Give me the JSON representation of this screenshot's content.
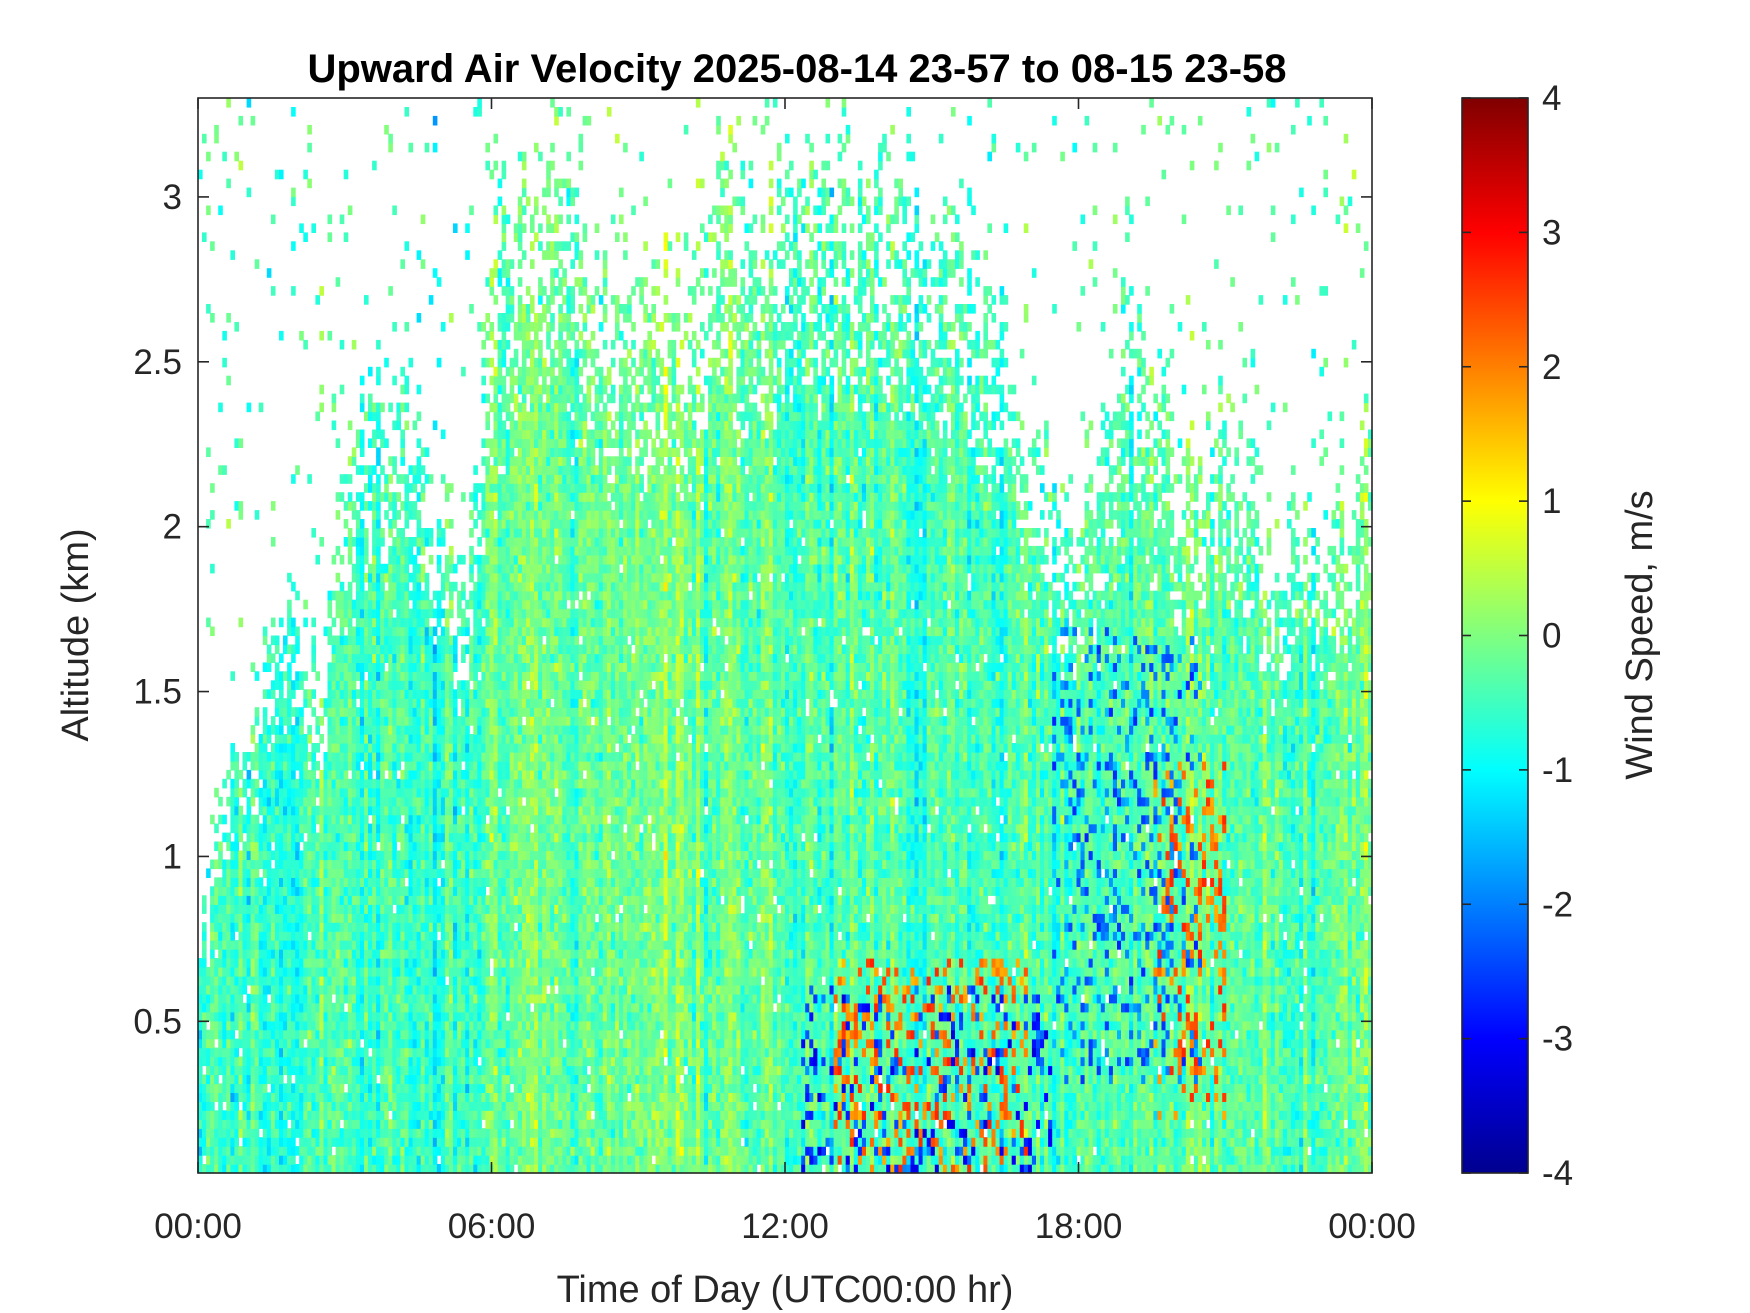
{
  "chart_data": {
    "type": "heatmap",
    "title": "Upward Air Velocity 2025-08-14 23-57 to 08-15 23-58",
    "xlabel": "Time of Day (UTC00:00 hr)",
    "ylabel": "Altitude (km)",
    "colorbar_label": "Wind Speed, m/s",
    "xlim_hours": [
      0,
      24
    ],
    "ylim_km": [
      0.04,
      3.3
    ],
    "clim": [
      -4,
      4
    ],
    "colormap": "jet",
    "grid": false,
    "x_ticks": [
      {
        "value": 0,
        "label": "00:00"
      },
      {
        "value": 6,
        "label": "06:00"
      },
      {
        "value": 12,
        "label": "12:00"
      },
      {
        "value": 18,
        "label": "18:00"
      },
      {
        "value": 24,
        "label": "00:00"
      }
    ],
    "y_ticks": [
      {
        "value": 0.5,
        "label": "0.5"
      },
      {
        "value": 1,
        "label": "1"
      },
      {
        "value": 1.5,
        "label": "1.5"
      },
      {
        "value": 2,
        "label": "2"
      },
      {
        "value": 2.5,
        "label": "2.5"
      },
      {
        "value": 3,
        "label": "3"
      }
    ],
    "colorbar_ticks": [
      {
        "value": 4,
        "label": "4"
      },
      {
        "value": 3,
        "label": "3"
      },
      {
        "value": 2,
        "label": "2"
      },
      {
        "value": 1,
        "label": "1"
      },
      {
        "value": 0,
        "label": "0"
      },
      {
        "value": -1,
        "label": "-1"
      },
      {
        "value": -2,
        "label": "-2"
      },
      {
        "value": -3,
        "label": "-3"
      },
      {
        "value": -4,
        "label": "-4"
      }
    ],
    "echo_top_profile_km": {
      "hours": [
        0,
        0.5,
        1,
        1.5,
        2,
        2.5,
        3,
        3.5,
        4,
        4.5,
        5,
        5.5,
        6,
        6.5,
        7,
        7.5,
        8,
        8.5,
        9,
        9.5,
        10,
        10.5,
        11,
        11.5,
        12,
        12.5,
        13,
        13.5,
        14,
        14.5,
        15,
        15.5,
        16,
        16.5,
        17,
        17.5,
        18,
        18.5,
        19,
        19.5,
        20,
        20.5,
        21,
        21.5,
        22,
        22.5,
        23,
        23.5,
        24
      ],
      "top_km": [
        0.8,
        1.2,
        1.4,
        1.7,
        1.9,
        1.6,
        2.3,
        2.5,
        2.5,
        2.4,
        2.2,
        1.9,
        2.9,
        3.1,
        3.2,
        3.2,
        2.9,
        2.8,
        2.9,
        2.8,
        2.7,
        3.1,
        3.2,
        2.8,
        3.2,
        3.2,
        3.2,
        3.1,
        3.1,
        3.1,
        3.0,
        3.0,
        2.8,
        2.6,
        2.4,
        2.2,
        2.0,
        2.4,
        2.7,
        2.6,
        2.3,
        2.3,
        2.5,
        2.2,
        2.0,
        2.0,
        2.1,
        2.2,
        2.4
      ]
    },
    "mean_velocity_by_period_ms": [
      {
        "hours": [
          0,
          6
        ],
        "value": -0.5
      },
      {
        "hours": [
          6,
          12
        ],
        "value": -0.2
      },
      {
        "hours": [
          12,
          18
        ],
        "value": -0.4
      },
      {
        "hours": [
          18,
          24
        ],
        "value": -0.3
      }
    ],
    "strong_updraft_bands": [
      {
        "hours": [
          13,
          17
        ],
        "alt_km": [
          0.04,
          0.7
        ],
        "value_ms": 2.5
      },
      {
        "hours": [
          19.5,
          21
        ],
        "alt_km": [
          0.2,
          1.3
        ],
        "value_ms": 2.5
      }
    ],
    "strong_downdraft_bands": [
      {
        "hours": [
          12.3,
          17.5
        ],
        "alt_km": [
          0.04,
          0.6
        ],
        "value_ms": -3
      },
      {
        "hours": [
          17.5,
          20.5
        ],
        "alt_km": [
          0.3,
          1.7
        ],
        "value_ms": -2.5
      }
    ]
  }
}
